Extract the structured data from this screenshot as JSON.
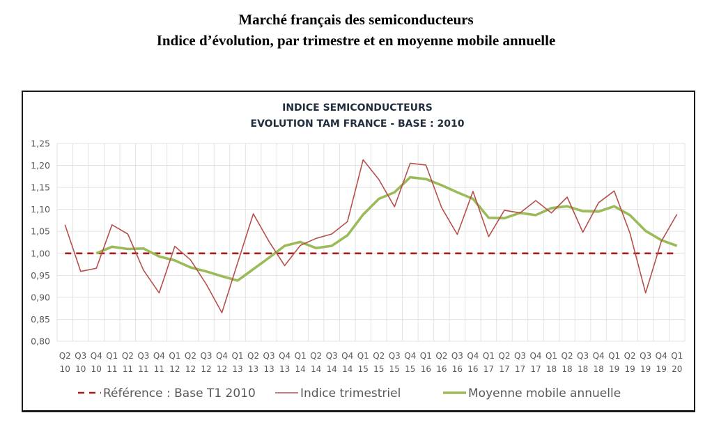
{
  "document": {
    "title_line1": "Marché français des semiconducteurs",
    "title_line2": "Indice d’évolution, par trimestre et en moyenne mobile annuelle"
  },
  "chart_data": {
    "type": "line",
    "title": [
      "INDICE SEMICONDUCTEURS",
      "EVOLUTION TAM FRANCE - BASE : 2010"
    ],
    "xlabel": "",
    "ylabel": "",
    "ylim": [
      0.8,
      1.25
    ],
    "yticks": [
      "0,80",
      "0,85",
      "0,90",
      "0,95",
      "1,00",
      "1,05",
      "1,10",
      "1,15",
      "1,20",
      "1,25"
    ],
    "ytick_values": [
      0.8,
      0.85,
      0.9,
      0.95,
      1.0,
      1.05,
      1.1,
      1.15,
      1.2,
      1.25
    ],
    "grid": true,
    "legend_position": "bottom",
    "categories": [
      [
        "Q2",
        "10"
      ],
      [
        "Q3",
        "10"
      ],
      [
        "Q4",
        "10"
      ],
      [
        "Q1",
        "11"
      ],
      [
        "Q2",
        "11"
      ],
      [
        "Q3",
        "11"
      ],
      [
        "Q4",
        "11"
      ],
      [
        "Q1",
        "12"
      ],
      [
        "Q2",
        "12"
      ],
      [
        "Q3",
        "12"
      ],
      [
        "Q4",
        "12"
      ],
      [
        "Q1",
        "13"
      ],
      [
        "Q2",
        "13"
      ],
      [
        "Q3",
        "13"
      ],
      [
        "Q4",
        "13"
      ],
      [
        "Q1",
        "14"
      ],
      [
        "Q2",
        "14"
      ],
      [
        "Q3",
        "14"
      ],
      [
        "Q4",
        "14"
      ],
      [
        "Q1",
        "15"
      ],
      [
        "Q2",
        "15"
      ],
      [
        "Q3",
        "15"
      ],
      [
        "Q4",
        "15"
      ],
      [
        "Q1",
        "16"
      ],
      [
        "Q2",
        "16"
      ],
      [
        "Q3",
        "16"
      ],
      [
        "Q4",
        "16"
      ],
      [
        "Q1",
        "17"
      ],
      [
        "Q2",
        "17"
      ],
      [
        "Q3",
        "17"
      ],
      [
        "Q4",
        "17"
      ],
      [
        "Q1",
        "18"
      ],
      [
        "Q2",
        "18"
      ],
      [
        "Q3",
        "18"
      ],
      [
        "Q4",
        "18"
      ],
      [
        "Q1",
        "19"
      ],
      [
        "Q2",
        "19"
      ],
      [
        "Q3",
        "19"
      ],
      [
        "Q4",
        "19"
      ],
      [
        "Q1",
        "20"
      ]
    ],
    "series": [
      {
        "name": "Référence : Base T1 2010",
        "style": "dashed",
        "color": "#A51E1E",
        "values": [
          1.0,
          1.0,
          1.0,
          1.0,
          1.0,
          1.0,
          1.0,
          1.0,
          1.0,
          1.0,
          1.0,
          1.0,
          1.0,
          1.0,
          1.0,
          1.0,
          1.0,
          1.0,
          1.0,
          1.0,
          1.0,
          1.0,
          1.0,
          1.0,
          1.0,
          1.0,
          1.0,
          1.0,
          1.0,
          1.0,
          1.0,
          1.0,
          1.0,
          1.0,
          1.0,
          1.0,
          1.0,
          1.0,
          1.0,
          1.0
        ]
      },
      {
        "name": "Indice trimestriel",
        "style": "solid-thin",
        "color": "#B5504D",
        "values": [
          1.065,
          0.959,
          0.966,
          1.065,
          1.044,
          0.962,
          0.91,
          1.016,
          0.985,
          0.93,
          0.865,
          0.978,
          1.09,
          1.027,
          0.972,
          1.018,
          1.034,
          1.044,
          1.072,
          1.213,
          1.168,
          1.106,
          1.205,
          1.201,
          1.104,
          1.043,
          1.141,
          1.038,
          1.098,
          1.092,
          1.12,
          1.092,
          1.128,
          1.048,
          1.115,
          1.142,
          1.046,
          0.91,
          1.027,
          1.089
        ]
      },
      {
        "name": "Moyenne mobile annuelle",
        "style": "solid-thick",
        "color": "#9BBB59",
        "values": [
          null,
          null,
          1.0,
          1.015,
          1.01,
          1.011,
          0.993,
          0.984,
          0.968,
          0.959,
          0.948,
          0.938,
          0.964,
          0.99,
          1.017,
          1.026,
          1.012,
          1.017,
          1.041,
          1.088,
          1.124,
          1.139,
          1.173,
          1.169,
          1.155,
          1.139,
          1.124,
          1.081,
          1.08,
          1.092,
          1.087,
          1.103,
          1.107,
          1.096,
          1.095,
          1.107,
          1.087,
          1.051,
          1.03,
          1.017
        ]
      }
    ]
  }
}
